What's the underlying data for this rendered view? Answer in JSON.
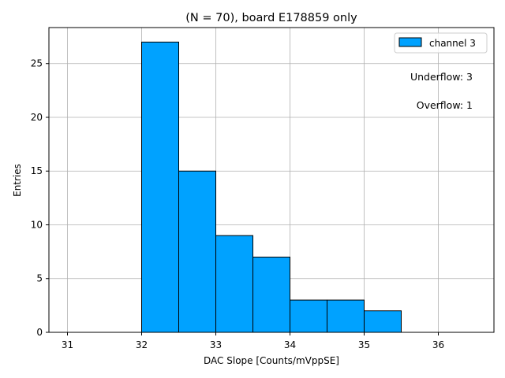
{
  "chart_data": {
    "type": "bar",
    "title": "(N = 70), board E178859 only",
    "xlabel": "DAC Slope [Counts/mVppSE]",
    "ylabel": "Entries",
    "xlim": [
      30.75,
      36.75
    ],
    "ylim": [
      0,
      28.35
    ],
    "xticks": [
      31,
      32,
      33,
      34,
      35,
      36
    ],
    "yticks": [
      0,
      5,
      10,
      15,
      20,
      25
    ],
    "grid": true,
    "legend_position": "top-right",
    "series": [
      {
        "name": "channel 3",
        "color": "#00a2ff",
        "bin_edges": [
          31.0,
          31.5,
          32.0,
          32.5,
          33.0,
          33.5,
          34.0,
          34.5,
          35.0,
          35.5,
          36.0,
          36.5
        ],
        "counts": [
          0,
          0,
          27,
          15,
          9,
          7,
          3,
          3,
          2,
          0,
          0
        ]
      }
    ],
    "annotations": [
      "Underflow: 3",
      "Overflow: 1"
    ]
  }
}
